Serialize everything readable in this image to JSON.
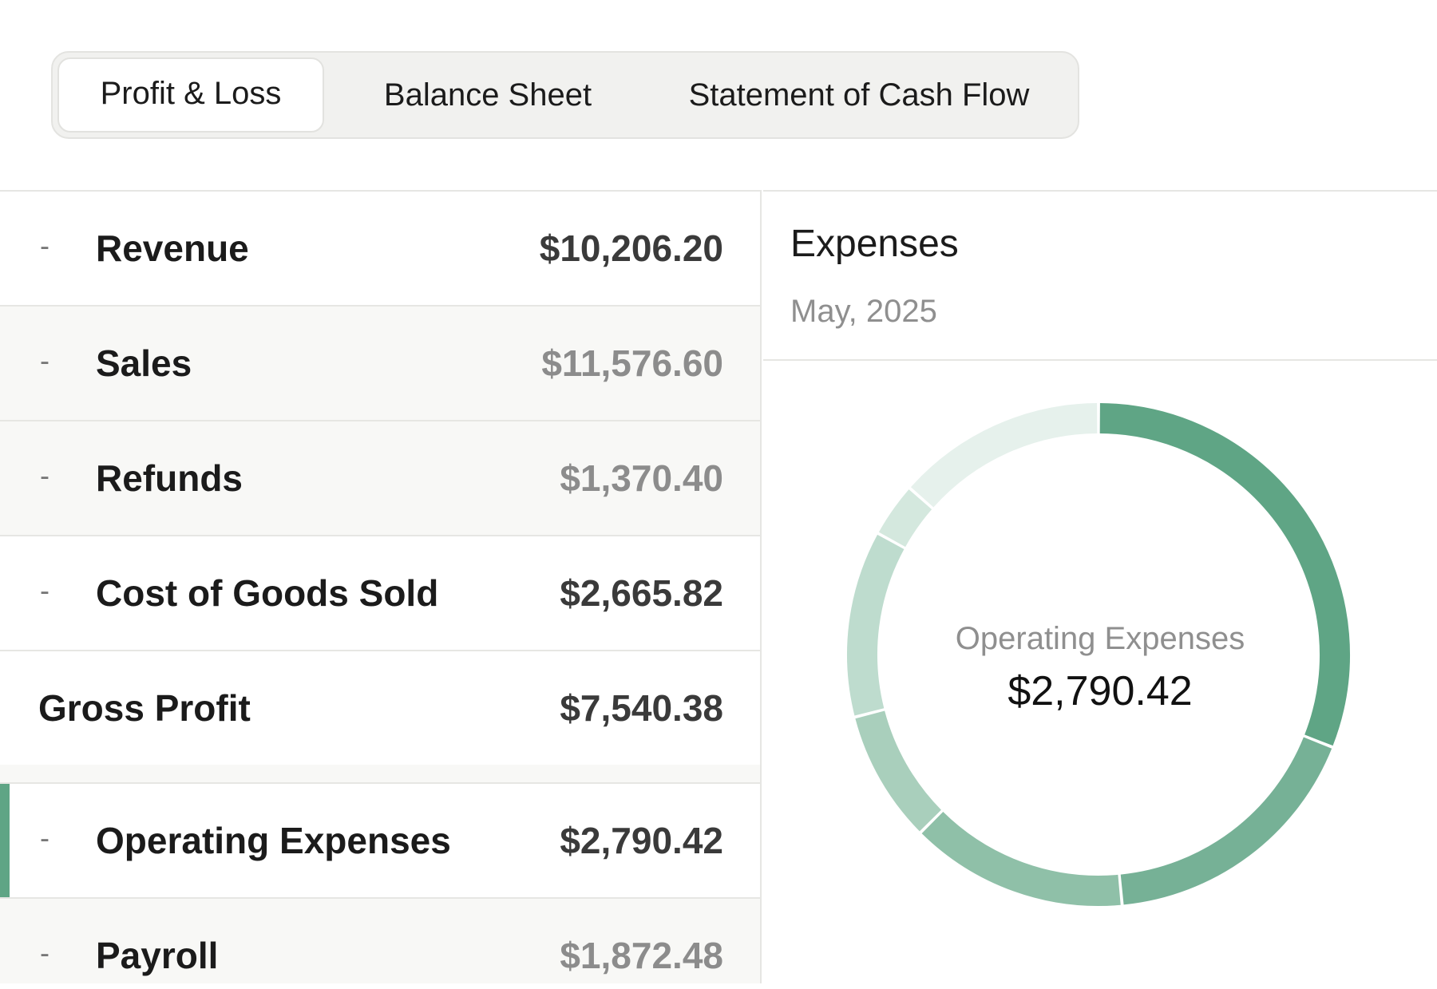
{
  "tabs": [
    {
      "label": "Profit & Loss",
      "active": true
    },
    {
      "label": "Balance Sheet",
      "active": false
    },
    {
      "label": "Statement of Cash Flow",
      "active": false
    }
  ],
  "rows": [
    {
      "dash": "-",
      "label": "Revenue",
      "amount": "$10,206.20",
      "sub": false
    },
    {
      "dash": "-",
      "label": "Sales",
      "amount": "$11,576.60",
      "sub": true
    },
    {
      "dash": "-",
      "label": "Refunds",
      "amount": "$1,370.40",
      "sub": true
    },
    {
      "dash": "-",
      "label": "Cost of Goods Sold",
      "amount": "$2,665.82",
      "sub": false
    },
    {
      "dash": "",
      "label": "Gross Profit",
      "amount": "$7,540.38",
      "sub": false
    },
    {
      "dash": "-",
      "label": "Operating Expenses",
      "amount": "$2,790.42",
      "sub": false,
      "selected": true
    },
    {
      "dash": "-",
      "label": "Payroll",
      "amount": "$1,872.48",
      "sub": true
    }
  ],
  "panel": {
    "title": "Expenses",
    "subtitle": "May, 2025"
  },
  "chart_data": {
    "type": "pie",
    "donut": true,
    "center_label": "Operating Expenses",
    "center_value": "$2,790.42",
    "slices": [
      {
        "value": 31.0,
        "color": "#5fa585"
      },
      {
        "value": 17.5,
        "color": "#76b196"
      },
      {
        "value": 14.0,
        "color": "#8fc0a8"
      },
      {
        "value": 8.5,
        "color": "#a9cfbc"
      },
      {
        "value": 12.0,
        "color": "#bedcce"
      },
      {
        "value": 3.5,
        "color": "#d4e8de"
      },
      {
        "value": 13.5,
        "color": "#e6f1ec"
      }
    ],
    "colors": {
      "accent": "#5fa585"
    }
  }
}
